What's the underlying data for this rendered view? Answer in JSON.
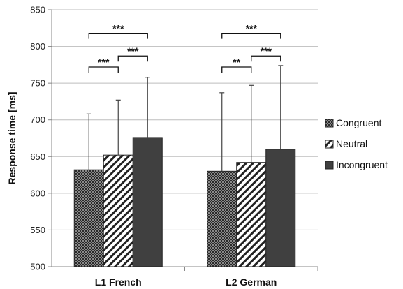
{
  "chart_data": {
    "type": "bar",
    "ylabel": "Response time [ms]",
    "xlabel": "",
    "ylim": [
      500,
      850
    ],
    "yticks": [
      500,
      550,
      600,
      650,
      700,
      750,
      800,
      850
    ],
    "grid": true,
    "legend_position": "right",
    "categories": [
      "L1 French",
      "L2 German"
    ],
    "series": [
      {
        "name": "Congruent",
        "values": [
          632,
          630
        ],
        "error_upper": [
          708,
          737
        ],
        "pattern": "checker",
        "color": "#555555"
      },
      {
        "name": "Neutral",
        "values": [
          652,
          642
        ],
        "error_upper": [
          727,
          747
        ],
        "pattern": "diagonal",
        "color": "#222222"
      },
      {
        "name": "Incongruent",
        "values": [
          676,
          660
        ],
        "error_upper": [
          758,
          774
        ],
        "pattern": "solid",
        "color": "#404040"
      }
    ],
    "significance": [
      {
        "category": 0,
        "from": 0,
        "to": 1,
        "label": "***",
        "y": 772
      },
      {
        "category": 0,
        "from": 1,
        "to": 2,
        "label": "***",
        "y": 787
      },
      {
        "category": 0,
        "from": 0,
        "to": 2,
        "label": "***",
        "y": 818
      },
      {
        "category": 1,
        "from": 0,
        "to": 1,
        "label": "**",
        "y": 772
      },
      {
        "category": 1,
        "from": 1,
        "to": 2,
        "label": "***",
        "y": 787
      },
      {
        "category": 1,
        "from": 0,
        "to": 2,
        "label": "***",
        "y": 818
      }
    ]
  }
}
